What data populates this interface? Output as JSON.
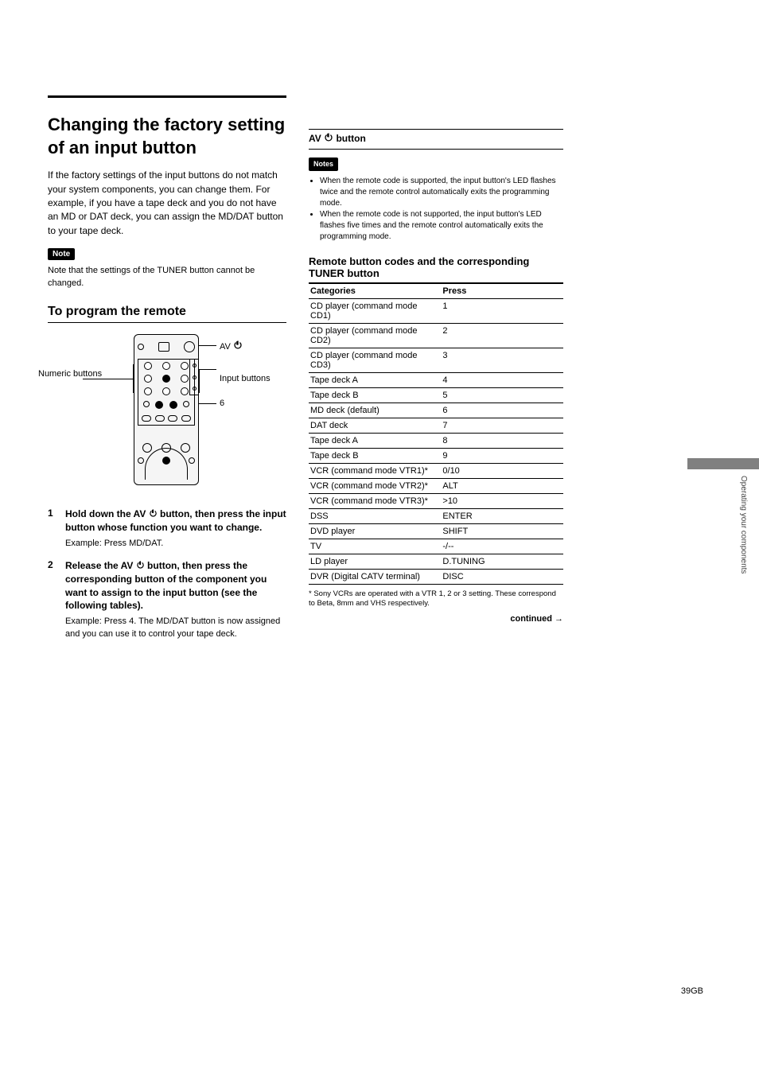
{
  "heavy_rule_color": "#000000",
  "section": {
    "title": "Changing the factory setting of an input button",
    "intro": "If the factory settings of the input buttons do not match your system components, you can change them. For example, if you have a tape deck and you do not have an MD or DAT deck, you can assign the MD/DAT button to your tape deck.",
    "note_body": "Note that the settings of the TUNER button cannot be changed.",
    "note_label": "Note"
  },
  "subsection": {
    "title": "To program the remote"
  },
  "remote_labels": {
    "power": "AV  I/⏻",
    "input": "Input buttons",
    "numeric": "Numeric buttons",
    "six": "6"
  },
  "steps": [
    {
      "n": "1",
      "bold": "Hold down the AV I/⏻ button, then press the input button whose function you want to change.",
      "sub": "Example: Press MD/DAT."
    },
    {
      "n": "2",
      "bold": "Release the AV I/⏻ button, then press the corresponding button of the component you want to assign to the input button (see the following tables).",
      "sub": "Example: Press 4.\nThe MD/DAT button is now assigned and you can use it to control your tape deck."
    }
  ],
  "code_top": "AV I/⏻ button",
  "notes": {
    "label": "Notes",
    "bullets": [
      "When the remote code is supported, the input button's LED flashes twice and the remote control automatically exits the programming mode.",
      "When the remote code is not supported, the input button's LED flashes five times and the remote control automatically exits the programming mode."
    ]
  },
  "code_table": {
    "heading": "Remote button codes and the corresponding TUNER button",
    "columns": [
      "Categories",
      "Press"
    ],
    "rows": [
      [
        "CD player (command mode CD1)",
        "1"
      ],
      [
        "CD player (command mode CD2)",
        "2"
      ],
      [
        "CD player (command mode CD3)",
        "3"
      ],
      [
        "Tape deck A",
        "4"
      ],
      [
        "Tape deck B",
        "5"
      ],
      [
        "MD deck (default)",
        "6"
      ],
      [
        "DAT deck",
        "7"
      ],
      [
        "Tape deck A",
        "8"
      ],
      [
        "Tape deck B",
        "9"
      ],
      [
        "VCR (command mode VTR1)*",
        "0/10"
      ],
      [
        "VCR (command mode VTR2)*",
        "ALT"
      ],
      [
        "VCR (command mode VTR3)*",
        ">10"
      ],
      [
        "DSS",
        "ENTER"
      ],
      [
        "DVD player",
        "SHIFT"
      ],
      [
        "TV",
        "-/--"
      ],
      [
        "LD player",
        "D.TUNING"
      ],
      [
        "DVR (Digital CATV terminal)",
        "DISC"
      ]
    ],
    "footnote": "* Sony VCRs are operated with a VTR 1, 2 or 3 setting. These correspond to Beta, 8mm and VHS respectively."
  },
  "continued": "continued",
  "page_number": "39GB",
  "side_label": "Operating your components"
}
